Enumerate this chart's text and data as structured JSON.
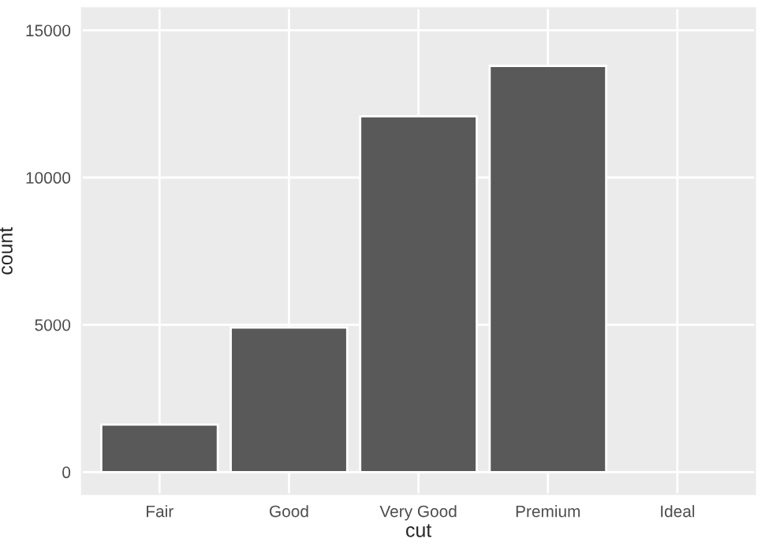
{
  "chart_data": {
    "type": "bar",
    "xlabel": "cut",
    "ylabel": "count",
    "categories": [
      "Fair",
      "Good",
      "Very Good",
      "Premium",
      "Ideal"
    ],
    "values": [
      1610,
      4906,
      12082,
      13791,
      null
    ],
    "color": "#595959",
    "ylim": [
      -750,
      15750
    ],
    "yticks": [
      0,
      5000,
      10000,
      15000
    ],
    "grid": true
  }
}
